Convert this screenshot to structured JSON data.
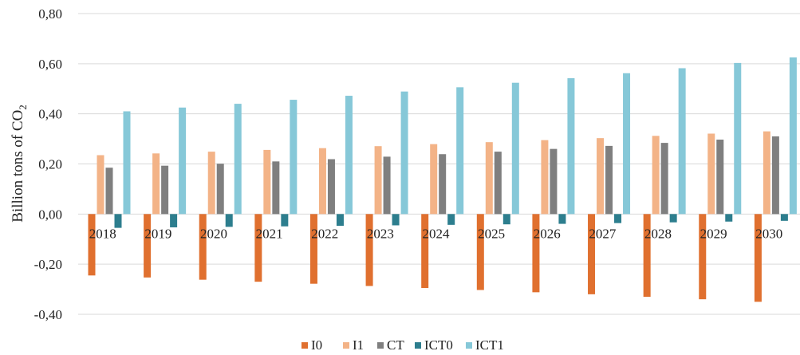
{
  "chart_data": {
    "type": "bar",
    "ylabel": "Billion tons of CO",
    "ylabel_subscript": "2",
    "ylim": [
      -0.4,
      0.8
    ],
    "yticks": [
      -0.4,
      -0.2,
      0.0,
      0.2,
      0.4,
      0.6,
      0.8
    ],
    "ytick_labels": [
      "-0,40",
      "-0,20",
      "0,00",
      "0,20",
      "0,40",
      "0,60",
      "0,80"
    ],
    "grid": true,
    "legend_position": "bottom",
    "categories": [
      "2018",
      "2019",
      "2020",
      "2021",
      "2022",
      "2023",
      "2024",
      "2025",
      "2026",
      "2027",
      "2028",
      "2029",
      "2030"
    ],
    "series": [
      {
        "name": "I0",
        "color": "#E0702F",
        "values": [
          -0.245,
          -0.253,
          -0.262,
          -0.27,
          -0.278,
          -0.287,
          -0.295,
          -0.303,
          -0.312,
          -0.32,
          -0.33,
          -0.34,
          -0.35
        ]
      },
      {
        "name": "I1",
        "color": "#F3B387",
        "values": [
          0.235,
          0.242,
          0.249,
          0.256,
          0.263,
          0.271,
          0.279,
          0.287,
          0.295,
          0.303,
          0.312,
          0.321,
          0.33
        ]
      },
      {
        "name": "CT",
        "color": "#7F7F7F",
        "values": [
          0.185,
          0.193,
          0.201,
          0.21,
          0.219,
          0.229,
          0.239,
          0.249,
          0.26,
          0.272,
          0.284,
          0.297,
          0.31
        ]
      },
      {
        "name": "ICT0",
        "color": "#2D7E8E",
        "values": [
          -0.055,
          -0.053,
          -0.051,
          -0.049,
          -0.047,
          -0.045,
          -0.043,
          -0.041,
          -0.039,
          -0.036,
          -0.033,
          -0.03,
          -0.027
        ]
      },
      {
        "name": "ICT1",
        "color": "#86C8D8",
        "values": [
          0.41,
          0.425,
          0.44,
          0.456,
          0.472,
          0.489,
          0.506,
          0.524,
          0.542,
          0.562,
          0.582,
          0.603,
          0.625
        ]
      }
    ]
  }
}
